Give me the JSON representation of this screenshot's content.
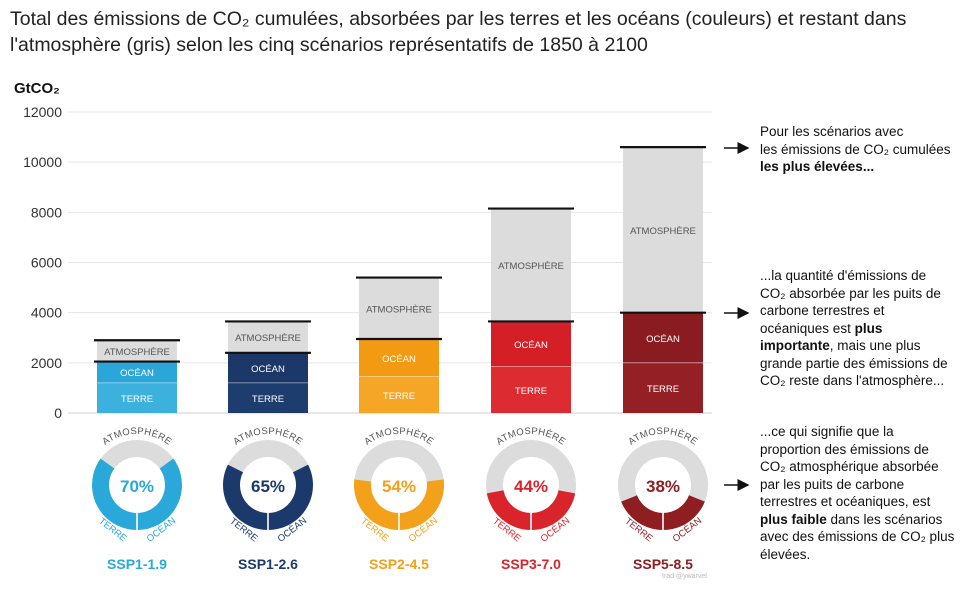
{
  "title_line1": "Total des émissions de CO₂ cumulées, absorbées par les terres et les océans (couleurs) et restant dans",
  "title_line2": "l'atmosphère (gris) selon les cinq scénarios représentatifs de 1850 à 2100",
  "credit": "trad @ywarvel",
  "notes": {
    "n1_a": "Pour les scénarios avec",
    "n1_b": "les émissions de CO₂ cumulées",
    "n1_c": "les plus élevées...",
    "n2_a": "...la quantité d'émissions de",
    "n2_b": "CO₂ absorbée par les puits de",
    "n2_c": "carbone terrestres et",
    "n2_d": "océaniques est ",
    "n2_d_bold": "plus",
    "n2_e_bold": "importante",
    "n2_e": ", mais une plus",
    "n2_f": "grande partie des émissions de",
    "n2_g": "CO₂ reste dans l'atmosphère...",
    "n3_a": "...ce qui signifie que la",
    "n3_b": "proportion des émissions de",
    "n3_c": "CO₂ atmosphérique absorbée",
    "n3_d": "par les puits de carbone",
    "n3_e": "terrestres et océaniques, est",
    "n3_f_bold": "plus faible",
    "n3_f": " dans les scénarios",
    "n3_g": "avec des émissions de CO₂ plus",
    "n3_h": "élevées."
  },
  "chart_data": {
    "type": "bar",
    "stacked": true,
    "ylabel": "GtCO₂",
    "ylim": [
      0,
      12000
    ],
    "yticks": [
      0,
      2000,
      4000,
      6000,
      8000,
      10000,
      12000
    ],
    "grid": true,
    "categories": [
      "SSP1-1.9",
      "SSP1-2.6",
      "SSP2-4.5",
      "SSP3-7.0",
      "SSP5-8.5"
    ],
    "series": [
      {
        "name": "TERRE",
        "values": [
          1200,
          1200,
          1450,
          1850,
          2000
        ]
      },
      {
        "name": "OCÉAN",
        "values": [
          850,
          1200,
          1500,
          1800,
          2000
        ]
      },
      {
        "name": "ATMOSPHÈRE",
        "values": [
          850,
          1250,
          2450,
          4500,
          6600
        ]
      }
    ],
    "colors": {
      "atmosphere": "#dcdcdc",
      "scenarios": [
        "#29a8d9",
        "#1b3a6b",
        "#f3a01b",
        "#d9242b",
        "#8e1e22"
      ],
      "terre_shade": [
        "#3cb1de",
        "#1e3d6f",
        "#f5a627",
        "#dd2c31",
        "#941f24"
      ],
      "ocean_shade": [
        "#2aa7d8",
        "#1c3869",
        "#f29a12",
        "#d51f26",
        "#8a1b20"
      ]
    },
    "donuts": {
      "absorbed_percent": [
        70,
        65,
        54,
        44,
        38
      ],
      "labels": [
        "70%",
        "65%",
        "54%",
        "44%",
        "38%"
      ],
      "ring_atmosphere": "ATMOSPHÈRE",
      "ring_terre": "TERRE",
      "ring_ocean": "OCÉAN"
    }
  }
}
